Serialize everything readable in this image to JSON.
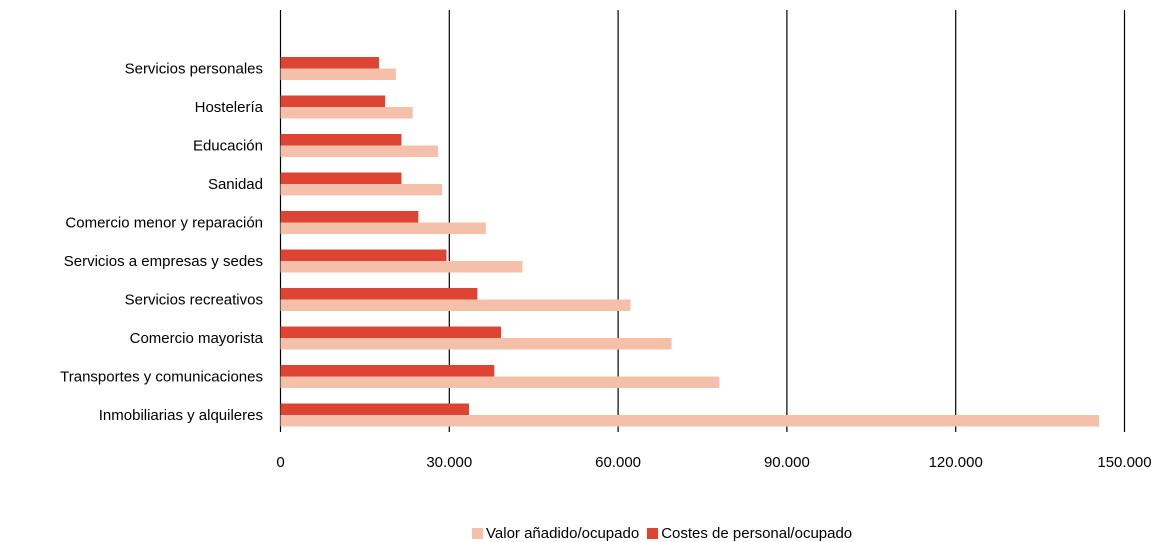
{
  "chart_data": {
    "type": "bar",
    "orientation": "horizontal",
    "categories": [
      "Servicios personales",
      "Hostelería",
      "Educación",
      "Sanidad",
      "Comercio menor y reparación",
      "Servicios a empresas y sedes",
      "Servicios recreativos",
      "Comercio mayorista",
      "Transportes y comunicaciones",
      "Inmobiliarias y alquileres"
    ],
    "series": [
      {
        "name": "Valor añadido/ocupado",
        "color": "#F4C0AA",
        "values": [
          20500,
          23500,
          28000,
          28700,
          36500,
          43000,
          62200,
          69500,
          78000,
          145500
        ]
      },
      {
        "name": "Costes de personal/ocupado",
        "color": "#DE4434",
        "values": [
          17500,
          18600,
          21500,
          21500,
          24500,
          29500,
          35000,
          39200,
          38000,
          33500
        ]
      }
    ],
    "xlim": [
      0,
      150000
    ],
    "xticks": [
      0,
      30000,
      60000,
      90000,
      120000,
      150000
    ],
    "xtick_labels": [
      "0",
      "30.000",
      "60.000",
      "90.000",
      "120.000",
      "150.000"
    ],
    "grid": "vertical",
    "legend_position": "bottom"
  }
}
